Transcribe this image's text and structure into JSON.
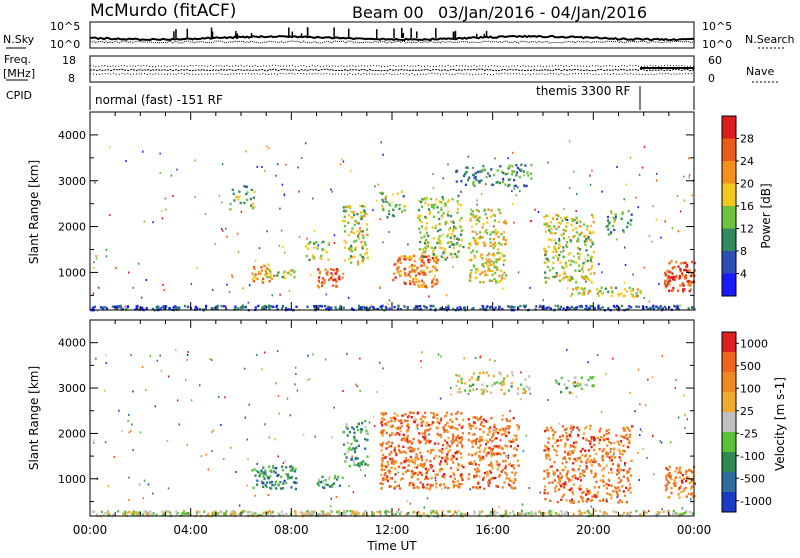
{
  "header": {
    "station": "McMurdo (fitACF)",
    "beam": "Beam 00",
    "date_range": "03/Jan/2016 - 04/Jan/2016"
  },
  "noise_panel": {
    "left_label": "N.Sky",
    "right_label": "N.Search",
    "left_ticks": [
      "10^5",
      "10^0"
    ],
    "right_ticks": [
      "10^5",
      "10^0"
    ]
  },
  "freq_panel": {
    "left_label_top": "Freq.",
    "left_label_unit": "[MHz]",
    "right_label": "Nave",
    "left_ticks": [
      "18",
      "8"
    ],
    "right_ticks": [
      "60",
      "0"
    ]
  },
  "cpid_panel": {
    "label": "CPID",
    "modes": [
      {
        "name": "normal (fast) -151 RF",
        "start_hour": 0,
        "end_hour": 21.8
      },
      {
        "name": "themis 3300 RF",
        "start_hour": 21.8,
        "end_hour": 24
      }
    ]
  },
  "time_axis": {
    "label": "Time UT",
    "ticks": [
      "00:00",
      "04:00",
      "08:00",
      "12:00",
      "16:00",
      "20:00",
      "00:00"
    ]
  },
  "chart_data": [
    {
      "type": "heatmap",
      "panel": "power",
      "xlabel": "Time UT",
      "ylabel": "Slant Range [km]",
      "x_units": "hours UT",
      "xlim": [
        0,
        24
      ],
      "ylim": [
        180,
        4500
      ],
      "yticks": [
        "1000",
        "2000",
        "3000",
        "4000"
      ],
      "colorbar": {
        "label": "Power [dB]",
        "ticks": [
          "4",
          "8",
          "12",
          "16",
          "20",
          "24",
          "28"
        ],
        "colors": [
          "#1a1aff",
          "#2d4fb4",
          "#2f8a5c",
          "#6ec23c",
          "#f2c81e",
          "#f5901e",
          "#ea5a18",
          "#dc1e1e"
        ]
      },
      "patches": [
        {
          "t": [
            0,
            24
          ],
          "r": [
            200,
            300
          ],
          "level": 0.2,
          "density": 0.9
        },
        {
          "t": [
            6.4,
            7.2
          ],
          "r": [
            800,
            1200
          ],
          "level": 0.7,
          "density": 0.6
        },
        {
          "t": [
            7.0,
            8.2
          ],
          "r": [
            900,
            1100
          ],
          "level": 0.5,
          "density": 0.55
        },
        {
          "t": [
            9.0,
            10.0
          ],
          "r": [
            700,
            1100
          ],
          "level": 0.8,
          "density": 0.6
        },
        {
          "t": [
            8.5,
            9.5
          ],
          "r": [
            1300,
            1700
          ],
          "level": 0.45,
          "density": 0.4
        },
        {
          "t": [
            10.0,
            11.0
          ],
          "r": [
            1200,
            2500
          ],
          "level": 0.5,
          "density": 0.45
        },
        {
          "t": [
            12.0,
            13.8
          ],
          "r": [
            700,
            1400
          ],
          "level": 0.75,
          "density": 0.6
        },
        {
          "t": [
            13.0,
            14.8
          ],
          "r": [
            1300,
            2700
          ],
          "level": 0.45,
          "density": 0.4
        },
        {
          "t": [
            15.0,
            16.5
          ],
          "r": [
            800,
            2400
          ],
          "level": 0.55,
          "density": 0.45
        },
        {
          "t": [
            14.5,
            17.5
          ],
          "r": [
            2900,
            3400
          ],
          "level": 0.3,
          "density": 0.35
        },
        {
          "t": [
            18.0,
            20.0
          ],
          "r": [
            800,
            2300
          ],
          "level": 0.5,
          "density": 0.4
        },
        {
          "t": [
            19.0,
            22.0
          ],
          "r": [
            500,
            700
          ],
          "level": 0.5,
          "density": 0.5
        },
        {
          "t": [
            22.8,
            24.0
          ],
          "r": [
            600,
            1300
          ],
          "level": 0.85,
          "density": 0.65
        },
        {
          "t": [
            20.5,
            21.5
          ],
          "r": [
            1800,
            2400
          ],
          "level": 0.35,
          "density": 0.3
        },
        {
          "t": [
            5.5,
            6.5
          ],
          "r": [
            2400,
            2900
          ],
          "level": 0.4,
          "density": 0.3
        },
        {
          "t": [
            11.5,
            12.5
          ],
          "r": [
            2200,
            2800
          ],
          "level": 0.4,
          "density": 0.3
        }
      ]
    },
    {
      "type": "heatmap",
      "panel": "velocity",
      "xlabel": "Time UT",
      "ylabel": "Slant Range [km]",
      "x_units": "hours UT",
      "xlim": [
        0,
        24
      ],
      "ylim": [
        180,
        4500
      ],
      "yticks": [
        "1000",
        "2000",
        "3000",
        "4000"
      ],
      "colorbar": {
        "label": "Velocity [m s-1]",
        "ticks": [
          "1000",
          "500",
          "100",
          "25",
          "-25",
          "-100",
          "-500",
          "-1000"
        ],
        "colors": [
          "#1a3cc8",
          "#2e6f9e",
          "#2e8a52",
          "#58c23a",
          "#c0c0c0",
          "#f0aa32",
          "#f08a1e",
          "#f0641e",
          "#e01e1e"
        ]
      },
      "patches": [
        {
          "t": [
            0,
            24
          ],
          "r": [
            200,
            320
          ],
          "level": 0.5,
          "density": 0.85
        },
        {
          "t": [
            6.4,
            8.2
          ],
          "r": [
            800,
            1300
          ],
          "level": 0.25,
          "density": 0.55
        },
        {
          "t": [
            9.0,
            10.0
          ],
          "r": [
            800,
            1100
          ],
          "level": 0.3,
          "density": 0.5
        },
        {
          "t": [
            10.0,
            11.0
          ],
          "r": [
            1300,
            2300
          ],
          "level": 0.3,
          "density": 0.4
        },
        {
          "t": [
            11.5,
            14.8
          ],
          "r": [
            800,
            2500
          ],
          "level": 0.78,
          "density": 0.5
        },
        {
          "t": [
            15.0,
            17.0
          ],
          "r": [
            800,
            2400
          ],
          "level": 0.78,
          "density": 0.45
        },
        {
          "t": [
            14.5,
            17.5
          ],
          "r": [
            2900,
            3400
          ],
          "level": 0.5,
          "density": 0.3
        },
        {
          "t": [
            18.0,
            21.5
          ],
          "r": [
            500,
            2200
          ],
          "level": 0.78,
          "density": 0.4
        },
        {
          "t": [
            22.8,
            24.0
          ],
          "r": [
            600,
            1300
          ],
          "level": 0.75,
          "density": 0.6
        },
        {
          "t": [
            18.5,
            20.0
          ],
          "r": [
            2900,
            3300
          ],
          "level": 0.45,
          "density": 0.3
        }
      ]
    }
  ]
}
